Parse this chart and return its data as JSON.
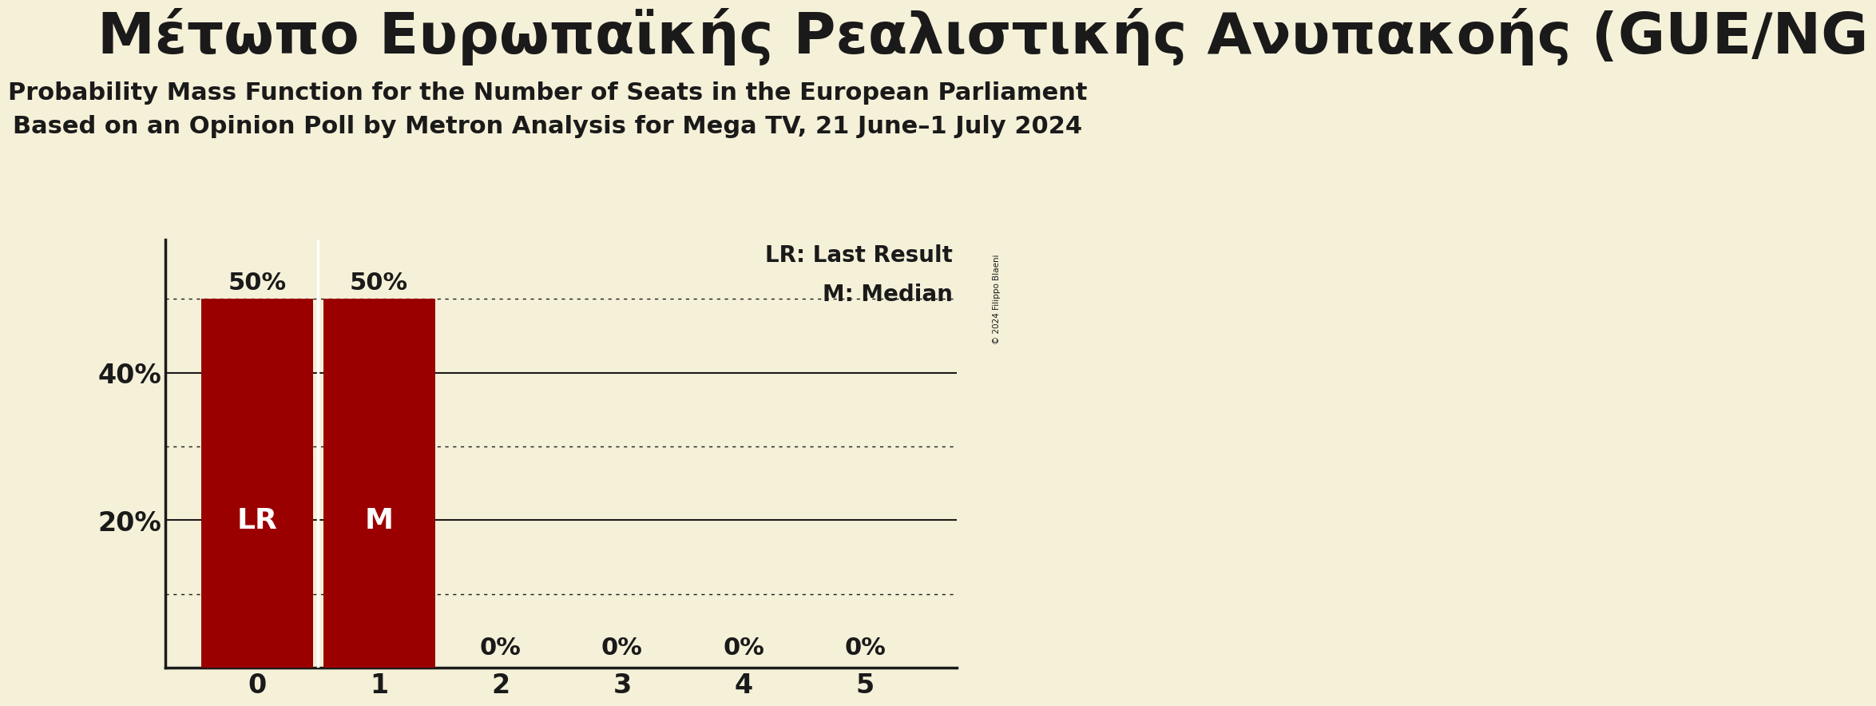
{
  "title_line1": "Μέτωπο Ευρωπαϊκής Ρεαλιστικής Ανυπακοής (GUE/NG",
  "subtitle_line1": "Probability Mass Function for the Number of Seats in the European Parliament",
  "subtitle_line2": "Based on an Opinion Poll by Metron Analysis for Mega TV, 21 June–1 July 2024",
  "copyright": "© 2024 Filippo Blaeni",
  "categories": [
    0,
    1,
    2,
    3,
    4,
    5
  ],
  "values": [
    0.5,
    0.5,
    0.0,
    0.0,
    0.0,
    0.0
  ],
  "bar_color": "#9b0000",
  "lr_seat": 0,
  "median_seat": 1,
  "background_color": "#f5f0d8",
  "text_color": "#1a1a1a",
  "yticks_solid": [
    0.2,
    0.4
  ],
  "yticks_dotted": [
    0.1,
    0.3,
    0.5
  ],
  "ytick_labels_pos": [
    0.2,
    0.4
  ],
  "ytick_labels": [
    "20%",
    "40%"
  ],
  "ylim": [
    0,
    0.58
  ],
  "legend_lr": "LR: Last Result",
  "legend_m": "M: Median",
  "bar_label_fontsize": 22,
  "lr_label_fontsize": 26,
  "title_fontsize": 52,
  "subtitle_fontsize": 22,
  "tick_fontsize": 24
}
